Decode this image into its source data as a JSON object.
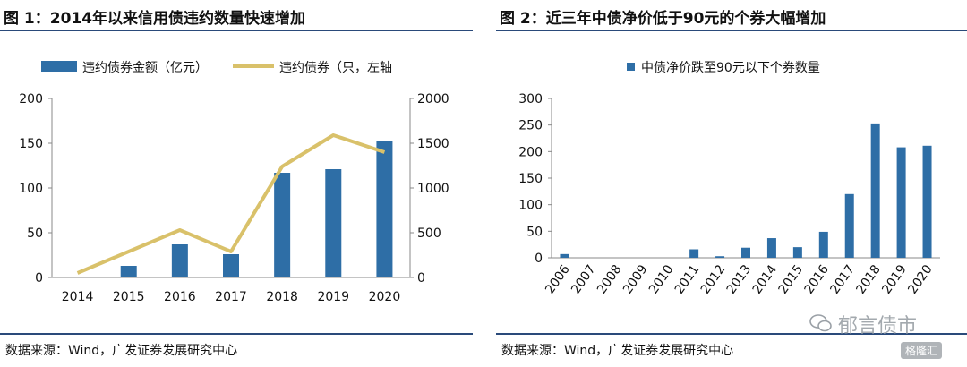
{
  "panels": [
    {
      "title": "图 1：2014年以来信用债违约数量快速增加",
      "source": "数据来源：Wind，广发证券发展研究中心"
    },
    {
      "title": "图 2：近三年中债净价低于90元的个券大幅增加",
      "source": "数据来源：Wind，广发证券发展研究中心"
    }
  ],
  "watermark": {
    "text": "郁言债市",
    "sub": "格隆汇"
  },
  "chart_data": [
    {
      "type": "bar",
      "categories": [
        "2014",
        "2015",
        "2016",
        "2017",
        "2018",
        "2019",
        "2020"
      ],
      "series": [
        {
          "name": "违约债券金额（亿元）",
          "type": "bar",
          "axis": "left",
          "values": [
            1,
            13,
            37,
            26,
            117,
            121,
            152
          ],
          "color": "#2e6ea6"
        },
        {
          "name": "违约债券（只，左轴",
          "type": "line",
          "axis": "right",
          "values": [
            50,
            290,
            530,
            290,
            1240,
            1590,
            1400
          ],
          "color": "#d9c16a"
        }
      ],
      "ylim_left": [
        0,
        200
      ],
      "yticks_left": [
        "0",
        "50",
        "100",
        "150",
        "200"
      ],
      "ylim_right": [
        0,
        2000
      ],
      "yticks_right": [
        "0",
        "500",
        "1000",
        "1500",
        "2000"
      ],
      "grid": false,
      "legend": "top"
    },
    {
      "type": "bar",
      "categories": [
        "2006",
        "2007",
        "2008",
        "2009",
        "2010",
        "2011",
        "2012",
        "2013",
        "2014",
        "2015",
        "2016",
        "2017",
        "2018",
        "2019",
        "2020"
      ],
      "series": [
        {
          "name": "中债净价跌至90元以下个券数量",
          "values": [
            7,
            0,
            0,
            0,
            0,
            16,
            3,
            19,
            37,
            20,
            49,
            120,
            253,
            208,
            211
          ],
          "color": "#2e6ea6"
        }
      ],
      "ylim": [
        0,
        300
      ],
      "yticks": [
        "0",
        "50",
        "100",
        "150",
        "200",
        "250",
        "300"
      ],
      "grid": false,
      "legend": "top"
    }
  ]
}
